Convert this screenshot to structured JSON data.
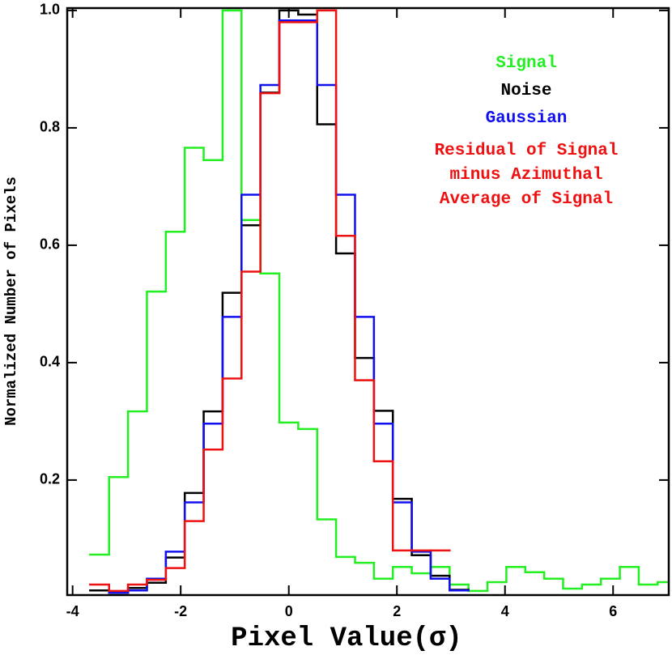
{
  "chart_data": {
    "type": "histogram",
    "xlabel": "Pixel Value(σ)",
    "ylabel": "Normalized Number of Pixels",
    "bins": [
      -3.675,
      -3.325,
      -2.975,
      -2.625,
      -2.275,
      -1.925,
      -1.575,
      -1.225,
      -0.875,
      -0.525,
      -0.175,
      0.175,
      0.525,
      0.875,
      1.225,
      1.575,
      1.925,
      2.275,
      2.625,
      2.975,
      3.325,
      3.675,
      4.025,
      4.375,
      4.725,
      5.075,
      5.425,
      5.775,
      6.125,
      6.475,
      6.825,
      7.175
    ],
    "series": [
      {
        "name": "Signal",
        "color": "#22ee22",
        "values": [
          0.073,
          0.205,
          0.317,
          0.521,
          0.623,
          0.766,
          0.745,
          1.0,
          0.643,
          0.552,
          0.298,
          0.287,
          0.133,
          0.069,
          0.059,
          0.032,
          0.052,
          0.041,
          0.052,
          0.022,
          0.011,
          0.026,
          0.052,
          0.043,
          0.032,
          0.015,
          0.022,
          0.032,
          0.052,
          0.022,
          0.026
        ]
      },
      {
        "name": "Noise",
        "color": "#000000",
        "values": [
          0.012,
          0.008,
          0.016,
          0.025,
          0.068,
          0.178,
          0.317,
          0.519,
          0.634,
          0.86,
          1.0,
          0.993,
          0.806,
          0.586,
          0.408,
          0.318,
          0.168,
          0.072,
          0.037,
          0.013,
          null,
          null,
          null,
          null,
          null,
          null,
          null,
          null,
          null,
          null,
          null
        ]
      },
      {
        "name": "Gaussian",
        "color": "#1010ee",
        "values": [
          null,
          0.008,
          0.012,
          0.032,
          0.078,
          0.162,
          0.296,
          0.478,
          0.686,
          0.873,
          0.983,
          0.983,
          0.873,
          0.686,
          0.478,
          0.296,
          0.162,
          0.078,
          0.032,
          0.012,
          null,
          null,
          null,
          null,
          null,
          null,
          null,
          null,
          null,
          null,
          null
        ]
      },
      {
        "name": "Residual of Signal\nminus Azimuthal\nAverage of Signal",
        "color": "#ee1111",
        "values": [
          0.022,
          0.011,
          0.022,
          0.03,
          0.05,
          0.13,
          0.252,
          0.373,
          0.555,
          0.859,
          0.98,
          0.98,
          1.0,
          0.616,
          0.37,
          0.232,
          0.08,
          0.08,
          0.08,
          null,
          null,
          null,
          null,
          null,
          null,
          null,
          null,
          null,
          null,
          null,
          null
        ]
      }
    ],
    "xlim": [
      -4.1,
      7.03
    ],
    "ylim": [
      0.004,
      1.004
    ],
    "xticks": [
      -4,
      -2,
      0,
      2,
      4,
      6
    ],
    "yticks": [
      0.2,
      0.4,
      0.6,
      0.8,
      {
        "value": 1,
        "label": "1.0"
      }
    ]
  }
}
